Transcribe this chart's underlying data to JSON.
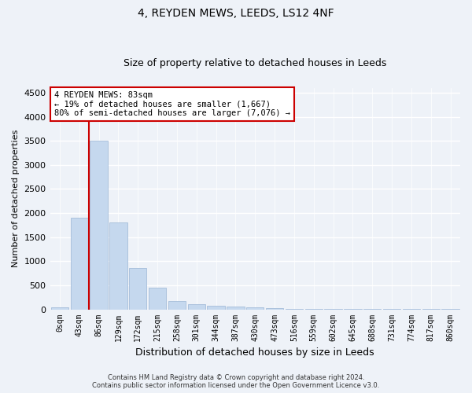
{
  "title": "4, REYDEN MEWS, LEEDS, LS12 4NF",
  "subtitle": "Size of property relative to detached houses in Leeds",
  "xlabel": "Distribution of detached houses by size in Leeds",
  "ylabel": "Number of detached properties",
  "categories": [
    "0sqm",
    "43sqm",
    "86sqm",
    "129sqm",
    "172sqm",
    "215sqm",
    "258sqm",
    "301sqm",
    "344sqm",
    "387sqm",
    "430sqm",
    "473sqm",
    "516sqm",
    "559sqm",
    "602sqm",
    "645sqm",
    "688sqm",
    "731sqm",
    "774sqm",
    "817sqm",
    "860sqm"
  ],
  "values": [
    40,
    1900,
    3500,
    1800,
    850,
    450,
    170,
    100,
    80,
    60,
    40,
    20,
    15,
    10,
    8,
    5,
    4,
    3,
    2,
    1,
    1
  ],
  "bar_color": "#c5d8ee",
  "bar_edge_color": "#9ab5d5",
  "vline_color": "#cc0000",
  "annotation_text": "4 REYDEN MEWS: 83sqm\n← 19% of detached houses are smaller (1,667)\n80% of semi-detached houses are larger (7,076) →",
  "annotation_box_color": "white",
  "annotation_box_edge": "#cc0000",
  "ylim": [
    0,
    4600
  ],
  "yticks": [
    0,
    500,
    1000,
    1500,
    2000,
    2500,
    3000,
    3500,
    4000,
    4500
  ],
  "background_color": "#eef2f8",
  "grid_color": "white",
  "footer_line1": "Contains HM Land Registry data © Crown copyright and database right 2024.",
  "footer_line2": "Contains public sector information licensed under the Open Government Licence v3.0."
}
